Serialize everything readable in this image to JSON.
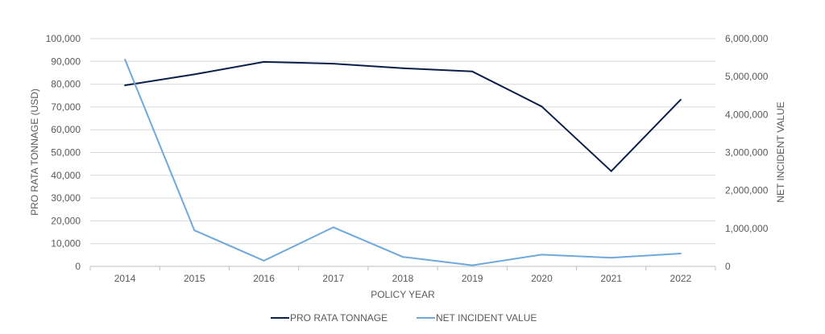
{
  "chart_data": {
    "type": "line",
    "title": "",
    "categories": [
      "2014",
      "2015",
      "2016",
      "2017",
      "2018",
      "2019",
      "2020",
      "2021",
      "2022"
    ],
    "xlabel": "POLICY YEAR",
    "ylabel_left": "PRO RATA TONNAGE (USD)",
    "ylabel_right": "NET INCIDENT VALUE",
    "ylim_left": [
      0,
      100000
    ],
    "ylim_right": [
      0,
      6000000
    ],
    "yticks_left": [
      "0",
      "10,000",
      "20,000",
      "30,000",
      "40,000",
      "50,000",
      "60,000",
      "70,000",
      "80,000",
      "90,000",
      "100,000"
    ],
    "yticks_right": [
      "0",
      "1,000,000",
      "2,000,000",
      "3,000,000",
      "4,000,000",
      "5,000,000",
      "6,000,000"
    ],
    "grid": true,
    "legend_position": "bottom",
    "series": [
      {
        "name": "PRO RATA TONNAGE",
        "axis": "left",
        "color": "#0b1f4b",
        "values": [
          79500,
          84300,
          89800,
          89000,
          87000,
          85600,
          70200,
          41800,
          73200
        ]
      },
      {
        "name": "NET INCIDENT VALUE",
        "axis": "right",
        "color": "#6fa8dc",
        "values": [
          5450000,
          950000,
          150000,
          1030000,
          250000,
          30000,
          310000,
          230000,
          340000
        ]
      }
    ]
  }
}
